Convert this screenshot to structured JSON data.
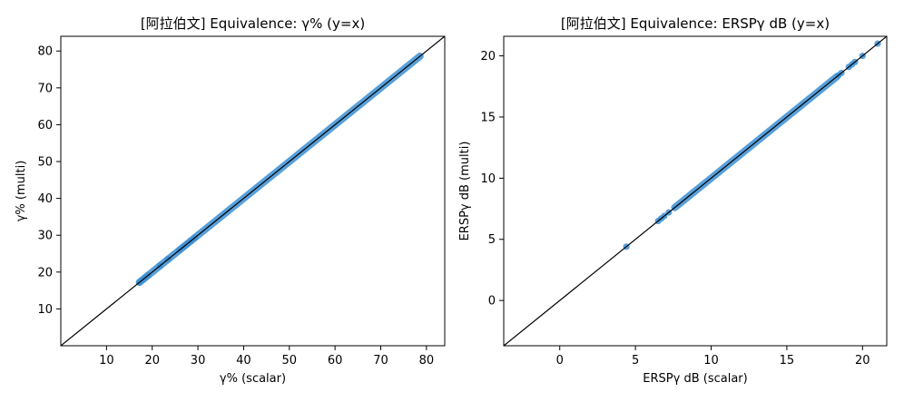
{
  "chart_data": [
    {
      "type": "scatter",
      "title": "[阿拉伯文] Equivalence: γ% (y=x)",
      "xlabel": "γ% (scalar)",
      "ylabel": "γ% (multi)",
      "xlim": [
        0,
        84
      ],
      "ylim": [
        0,
        84
      ],
      "xticks": [
        10,
        20,
        30,
        40,
        50,
        60,
        70,
        80
      ],
      "yticks": [
        10,
        20,
        30,
        40,
        50,
        60,
        70,
        80
      ],
      "reference_line": "y=x",
      "grid": false,
      "point_color": "#3a8fd4",
      "line_color": "#000000",
      "series": [
        {
          "range": [
            17.2,
            78.6
          ],
          "points": [
            [
              17.2,
              17.2
            ],
            [
              17.8,
              17.8
            ],
            [
              18.6,
              18.6
            ],
            [
              19.1,
              19.1
            ],
            [
              21.7,
              21.7
            ],
            [
              23.5,
              23.5
            ],
            [
              26.0,
              26.0
            ],
            [
              26.8,
              26.8
            ],
            [
              27.6,
              27.6
            ],
            [
              28.5,
              28.5
            ],
            [
              29.3,
              29.3
            ]
          ]
        }
      ]
    },
    {
      "type": "scatter",
      "title": "[阿拉伯文] Equivalence: ERSPγ dB (y=x)",
      "xlabel": "ERSPγ dB (scalar)",
      "ylabel": "ERSPγ dB (multi)",
      "xlim": [
        -3.7,
        21.6
      ],
      "ylim": [
        -3.7,
        21.6
      ],
      "xticks": [
        0,
        5,
        10,
        15,
        20
      ],
      "yticks": [
        0,
        5,
        10,
        15,
        20
      ],
      "reference_line": "y=x",
      "grid": false,
      "point_color": "#3a8fd4",
      "line_color": "#000000",
      "series": [
        {
          "range": [
            7.6,
            18.3
          ],
          "points": [
            [
              4.4,
              4.4
            ],
            [
              6.5,
              6.5
            ],
            [
              6.7,
              6.7
            ],
            [
              6.9,
              6.9
            ],
            [
              7.2,
              7.2
            ],
            [
              18.4,
              18.4
            ],
            [
              18.6,
              18.6
            ],
            [
              19.1,
              19.1
            ],
            [
              19.3,
              19.3
            ],
            [
              19.5,
              19.5
            ],
            [
              20.0,
              20.0
            ],
            [
              21.0,
              21.0
            ]
          ]
        }
      ]
    }
  ]
}
